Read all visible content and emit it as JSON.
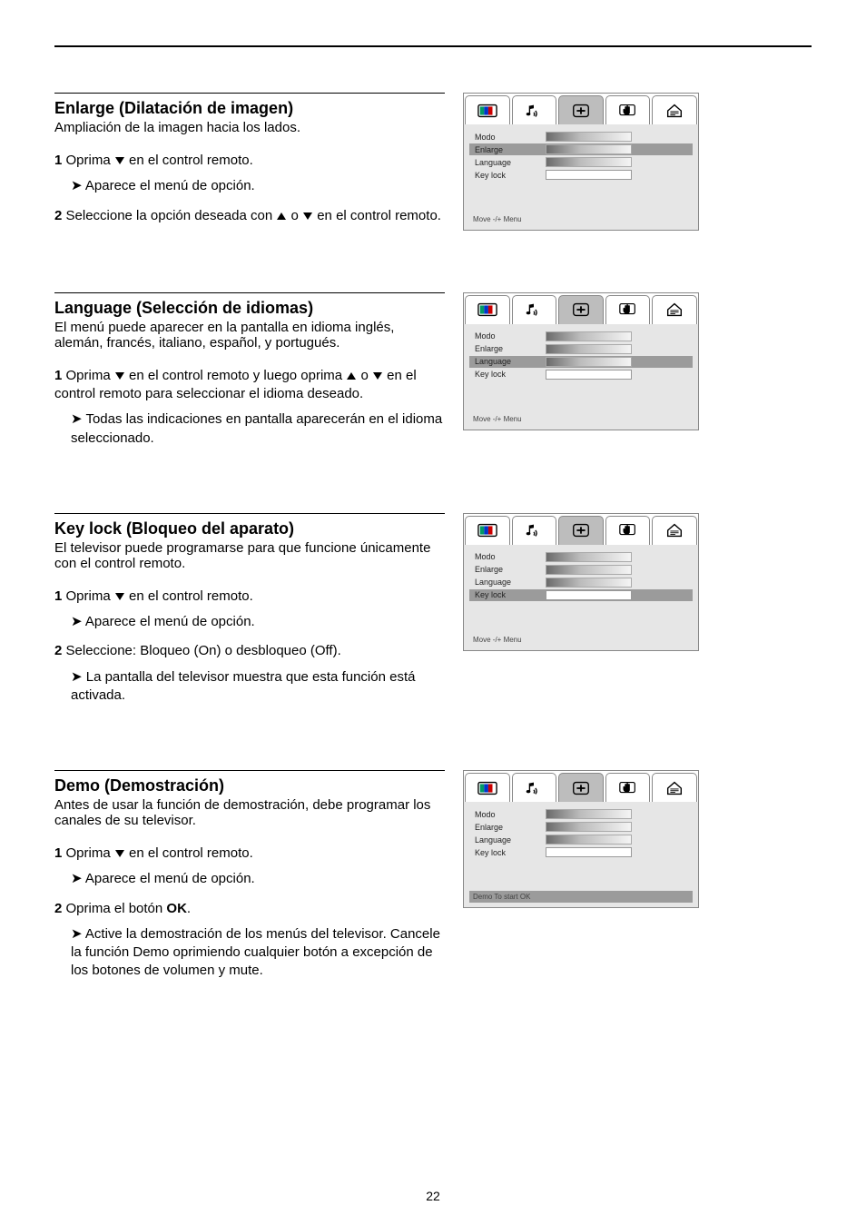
{
  "page_number": "22",
  "sections": [
    {
      "heading": "Enlarge (Dilatación de imagen)",
      "subtitle": "Ampliación de la imagen hacia los lados.",
      "step1_prefix": "1 Oprima ",
      "step1_button": " en el control remoto.",
      "result1": "➤ Aparece el menú de opción.",
      "step2_prefix": "2 Seleccione la opción deseada con ",
      "step2_mid": " o ",
      "step2_suffix": " en el control remoto.",
      "osd": {
        "rows": [
          {
            "label": "Modo",
            "mode": "grad"
          },
          {
            "label": "Enlarge",
            "mode": "grad",
            "selected": true
          },
          {
            "label": "Language",
            "mode": "grad"
          },
          {
            "label": "Key lock",
            "mode": "box",
            "value": ""
          }
        ],
        "lastline": "Move   -/+   Menu"
      }
    },
    {
      "heading": "Language (Selección de idiomas)",
      "subtitle": "El menú puede aparecer en la pantalla en idioma inglés, alemán, francés, italiano, español, y portugués.",
      "step1_prefix": "1 Oprima ",
      "step1_button": " en el control remoto y luego oprima ",
      "step1_mid": " o ",
      "step1_suffix": " en el control remoto para seleccionar el idioma deseado.",
      "result1": "➤ Todas las indicaciones en pantalla aparecerán en el idioma seleccionado.",
      "osd": {
        "rows": [
          {
            "label": "Modo",
            "mode": "grad"
          },
          {
            "label": "Enlarge",
            "mode": "grad"
          },
          {
            "label": "Language",
            "mode": "grad",
            "selected": true
          },
          {
            "label": "Key lock",
            "mode": "box",
            "value": ""
          }
        ],
        "lastline": "Move   -/+   Menu"
      }
    },
    {
      "heading": "Key lock (Bloqueo del aparato)",
      "subtitle": "El televisor puede programarse para que funcione únicamente con el control remoto.",
      "step1_prefix": "1 Oprima ",
      "step1_suffix": " en el control remoto.",
      "result1": "➤ Aparece el menú de opción.",
      "step2": "2 Seleccione: Bloqueo (On) o desbloqueo (Off).",
      "result2": "➤ La pantalla del televisor muestra que esta función está activada.",
      "osd": {
        "rows": [
          {
            "label": "Modo",
            "mode": "grad"
          },
          {
            "label": "Enlarge",
            "mode": "grad"
          },
          {
            "label": "Language",
            "mode": "grad"
          },
          {
            "label": "Key lock",
            "mode": "box",
            "value": "",
            "selected": true
          }
        ],
        "lastline": "Move   -/+   Menu"
      }
    },
    {
      "heading": "Demo (Demostración)",
      "subtitle": "Antes de usar la función de demostración, debe programar los canales de su televisor.",
      "step1_prefix": "1 Oprima ",
      "step1_suffix": " en el control remoto.",
      "result1": "➤ Aparece el menú de opción.",
      "step2_prefix": "2 Oprima el botón ",
      "step2_bold": "OK",
      "step2_suffix": ".",
      "result2": "➤ Active la demostración de los menús del televisor. Cancele la función Demo oprimiendo cualquier botón a excepción de los botones de volumen y mute.",
      "osd": {
        "rows": [
          {
            "label": "Modo",
            "mode": "grad"
          },
          {
            "label": "Enlarge",
            "mode": "grad"
          },
          {
            "label": "Language",
            "mode": "grad"
          },
          {
            "label": "Key lock",
            "mode": "box",
            "value": ""
          }
        ],
        "lastline_selected": true,
        "lastline": "Demo   To start   OK"
      }
    }
  ]
}
